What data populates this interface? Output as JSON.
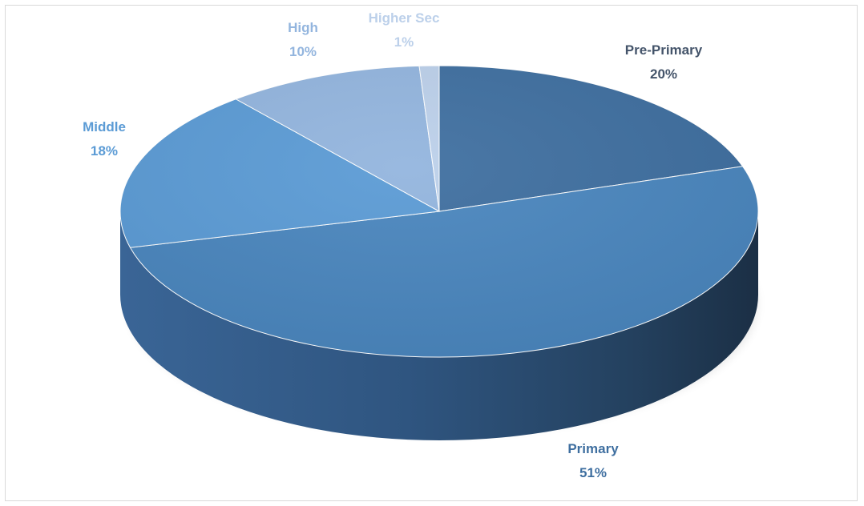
{
  "chart_data": {
    "type": "pie",
    "title": "",
    "slices": [
      {
        "label": "Pre-Primary",
        "value": 20,
        "value_label": "20%",
        "color": "#3f6fa0"
      },
      {
        "label": "Primary",
        "value": 51,
        "value_label": "51%",
        "color": "#4a86be"
      },
      {
        "label": "Middle",
        "value": 18,
        "value_label": "18%",
        "color": "#5b9bd5"
      },
      {
        "label": "High",
        "value": 10,
        "value_label": "10%",
        "color": "#93b5de"
      },
      {
        "label": "Higher Sec",
        "value": 1,
        "value_label": "1%",
        "color": "#bcd0ea"
      }
    ],
    "label_colors": {
      "Pre-Primary": "#44546a",
      "Primary": "#3f6fa0",
      "Middle": "#5b9bd5",
      "High": "#93b5de",
      "Higher Sec": "#bcd0ea"
    },
    "style": "3d-pie",
    "legend": "none"
  }
}
